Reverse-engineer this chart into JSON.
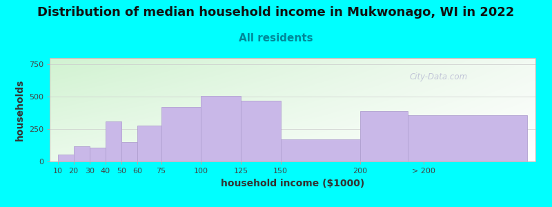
{
  "title": "Distribution of median household income in Mukwonago, WI in 2022",
  "subtitle": "All residents",
  "xlabel": "household income ($1000)",
  "ylabel": "households",
  "background_color": "#00FFFF",
  "bar_color": "#c9b8e8",
  "bar_edge_color": "#b0a0d0",
  "categories": [
    "10",
    "20",
    "30",
    "40",
    "50",
    "60",
    "75",
    "100",
    "125",
    "150",
    "200",
    "> 200"
  ],
  "values": [
    55,
    120,
    105,
    310,
    150,
    275,
    420,
    505,
    470,
    170,
    390,
    360
  ],
  "bar_positions": [
    10,
    20,
    30,
    40,
    50,
    60,
    75,
    100,
    125,
    150,
    200,
    230
  ],
  "bar_actual_widths": [
    10,
    10,
    10,
    10,
    10,
    15,
    25,
    25,
    25,
    50,
    30,
    75
  ],
  "xtick_positions": [
    10,
    20,
    30,
    40,
    50,
    60,
    75,
    100,
    125,
    150,
    200,
    240
  ],
  "ylim": [
    0,
    800
  ],
  "yticks": [
    0,
    250,
    500,
    750
  ],
  "title_fontsize": 13,
  "subtitle_fontsize": 11,
  "subtitle_color": "#008899",
  "axis_label_fontsize": 10,
  "tick_fontsize": 8,
  "watermark": "City-Data.com"
}
